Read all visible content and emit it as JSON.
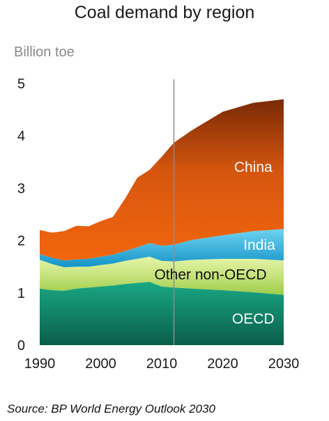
{
  "title": "Coal demand by region",
  "unit_label": "Billion toe",
  "source": "Source: BP World Energy Outlook 2030",
  "chart_data": {
    "type": "area",
    "stacked": true,
    "title": "Coal demand by region",
    "ylabel": "Billion toe",
    "xlim": [
      1990,
      2030
    ],
    "ylim": [
      0,
      5
    ],
    "x_ticks": [
      1990,
      2000,
      2010,
      2020,
      2030
    ],
    "y_ticks": [
      0,
      1,
      2,
      3,
      4,
      5
    ],
    "divider_year": 2012,
    "grid": false,
    "x": [
      1990,
      1992,
      1994,
      1996,
      1998,
      2000,
      2002,
      2004,
      2006,
      2008,
      2010,
      2012,
      2015,
      2020,
      2025,
      2030
    ],
    "series": [
      {
        "name": "OECD",
        "color": "#0f9a7a",
        "values": [
          1.08,
          1.05,
          1.04,
          1.08,
          1.1,
          1.12,
          1.14,
          1.17,
          1.19,
          1.21,
          1.12,
          1.1,
          1.08,
          1.05,
          1.01,
          0.96
        ]
      },
      {
        "name": "Other non-OECD",
        "color": "#cde88a",
        "values": [
          0.55,
          0.5,
          0.45,
          0.42,
          0.4,
          0.41,
          0.42,
          0.44,
          0.46,
          0.48,
          0.49,
          0.5,
          0.55,
          0.6,
          0.64,
          0.66
        ]
      },
      {
        "name": "India",
        "color": "#33b8e0",
        "values": [
          0.11,
          0.12,
          0.13,
          0.14,
          0.15,
          0.16,
          0.17,
          0.19,
          0.22,
          0.26,
          0.29,
          0.32,
          0.38,
          0.45,
          0.53,
          0.6
        ]
      },
      {
        "name": "China",
        "color": "#e8570c",
        "values": [
          0.46,
          0.48,
          0.56,
          0.64,
          0.62,
          0.68,
          0.72,
          1.0,
          1.33,
          1.4,
          1.7,
          1.95,
          2.1,
          2.36,
          2.45,
          2.48
        ]
      }
    ]
  }
}
